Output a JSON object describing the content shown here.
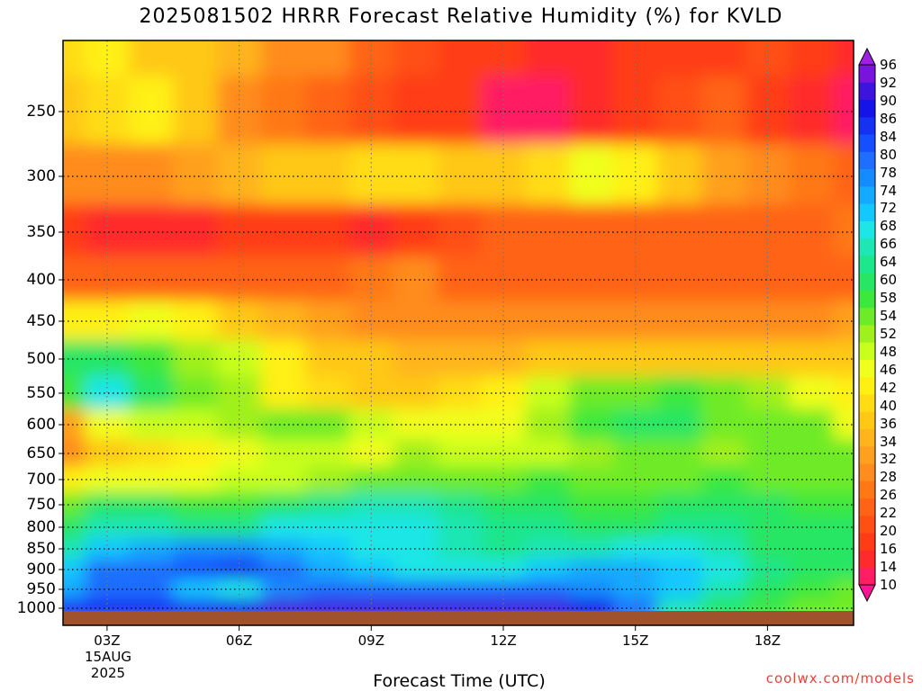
{
  "title": "2025081502 HRRR Forecast Relative Humidity (%) for KVLD",
  "credit": "coolwx.com/models",
  "chart_data": {
    "type": "heatmap",
    "title": "2025081502 HRRR Forecast Relative Humidity (%) for KVLD",
    "xlabel": "Forecast Time (UTC)",
    "ylabel": "",
    "x_ticks": [
      "03Z",
      "06Z",
      "09Z",
      "12Z",
      "15Z",
      "18Z"
    ],
    "x_date_lines": [
      "15AUG",
      "2025"
    ],
    "y_ticks": [
      250,
      300,
      350,
      400,
      450,
      500,
      550,
      600,
      650,
      700,
      750,
      800,
      850,
      900,
      950,
      1000
    ],
    "y_scale": "log",
    "grid": true,
    "colorbar_levels": [
      10,
      14,
      16,
      20,
      22,
      26,
      28,
      32,
      34,
      36,
      40,
      42,
      46,
      48,
      52,
      54,
      58,
      60,
      64,
      66,
      68,
      72,
      74,
      78,
      80,
      84,
      86,
      90,
      92,
      96
    ],
    "colorbar_colors": [
      "#ff1493",
      "#ff1e63",
      "#ff2a2a",
      "#ff3c14",
      "#ff5014",
      "#ff6414",
      "#ff7814",
      "#ff8c1e",
      "#ffa01e",
      "#ffb41e",
      "#ffc814",
      "#ffdc14",
      "#fff014",
      "#f0ff1e",
      "#c8ff1e",
      "#a0f01e",
      "#6eeb28",
      "#3ce83c",
      "#28e664",
      "#1ee68c",
      "#1ee6b4",
      "#1ee6e6",
      "#14c8ff",
      "#14aaff",
      "#148cff",
      "#1e6eff",
      "#1450ff",
      "#1432f0",
      "#1414e6",
      "#3c14dc",
      "#7814dc",
      "#a01ee6"
    ],
    "x": [
      "02Z",
      "03Z",
      "04Z",
      "05Z",
      "06Z",
      "07Z",
      "08Z",
      "09Z",
      "10Z",
      "11Z",
      "12Z",
      "13Z",
      "14Z",
      "15Z",
      "16Z",
      "17Z",
      "18Z",
      "19Z",
      "20Z"
    ],
    "levels": [
      200,
      250,
      300,
      350,
      400,
      450,
      500,
      550,
      600,
      650,
      700,
      750,
      800,
      850,
      900,
      950,
      1000
    ],
    "values": [
      [
        40,
        42,
        38,
        36,
        34,
        30,
        28,
        24,
        20,
        18,
        16,
        14,
        14,
        16,
        18,
        18,
        20,
        16,
        14
      ],
      [
        36,
        40,
        42,
        36,
        30,
        26,
        24,
        20,
        18,
        16,
        12,
        12,
        14,
        16,
        20,
        22,
        18,
        14,
        12
      ],
      [
        28,
        30,
        30,
        32,
        34,
        36,
        38,
        40,
        40,
        38,
        36,
        40,
        46,
        42,
        36,
        32,
        30,
        26,
        24
      ],
      [
        16,
        14,
        14,
        14,
        16,
        18,
        16,
        14,
        16,
        20,
        22,
        24,
        24,
        24,
        24,
        22,
        22,
        24,
        26
      ],
      [
        22,
        22,
        22,
        22,
        24,
        24,
        24,
        26,
        28,
        24,
        22,
        22,
        24,
        24,
        24,
        22,
        22,
        24,
        24
      ],
      [
        42,
        44,
        46,
        42,
        38,
        34,
        32,
        30,
        28,
        28,
        28,
        28,
        28,
        30,
        30,
        30,
        30,
        30,
        32
      ],
      [
        60,
        62,
        58,
        52,
        48,
        42,
        38,
        36,
        34,
        34,
        34,
        36,
        36,
        36,
        36,
        36,
        36,
        38,
        38
      ],
      [
        58,
        68,
        62,
        56,
        52,
        44,
        40,
        38,
        38,
        40,
        44,
        50,
        54,
        56,
        58,
        56,
        52,
        46,
        42
      ],
      [
        32,
        46,
        48,
        50,
        52,
        56,
        54,
        48,
        46,
        46,
        46,
        52,
        58,
        62,
        60,
        54,
        56,
        56,
        46
      ],
      [
        30,
        38,
        40,
        42,
        46,
        50,
        48,
        46,
        52,
        50,
        48,
        48,
        52,
        54,
        54,
        52,
        54,
        56,
        54
      ],
      [
        44,
        46,
        46,
        46,
        50,
        50,
        52,
        54,
        56,
        56,
        56,
        58,
        56,
        56,
        56,
        58,
        56,
        56,
        54
      ],
      [
        56,
        60,
        60,
        58,
        58,
        62,
        64,
        66,
        66,
        64,
        60,
        60,
        58,
        58,
        60,
        60,
        60,
        58,
        58
      ],
      [
        62,
        66,
        66,
        64,
        64,
        68,
        70,
        68,
        68,
        66,
        64,
        64,
        62,
        62,
        64,
        64,
        60,
        62,
        60
      ],
      [
        66,
        72,
        76,
        78,
        78,
        74,
        72,
        70,
        68,
        66,
        64,
        66,
        66,
        68,
        68,
        66,
        62,
        60,
        60
      ],
      [
        72,
        80,
        80,
        84,
        86,
        80,
        76,
        72,
        70,
        70,
        70,
        72,
        74,
        74,
        72,
        68,
        64,
        62,
        62
      ],
      [
        76,
        82,
        82,
        72,
        70,
        78,
        82,
        82,
        80,
        80,
        80,
        80,
        78,
        76,
        72,
        66,
        60,
        58,
        56
      ],
      [
        86,
        88,
        88,
        88,
        90,
        92,
        92,
        92,
        92,
        92,
        94,
        94,
        90,
        80,
        66,
        62,
        58,
        56,
        54
      ]
    ]
  },
  "icons": {
    "colorbar_top": "up-triangle",
    "colorbar_bottom": "down-triangle"
  }
}
